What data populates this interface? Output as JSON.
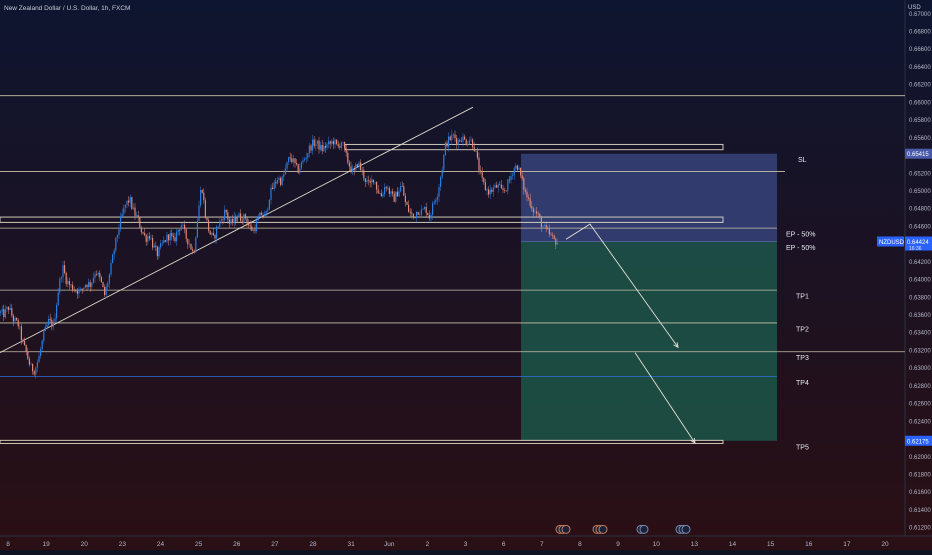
{
  "header": {
    "title": "New Zealand Dollar / U.S. Dollar, 1h, FXCM"
  },
  "price_scale": {
    "currency": "USD",
    "ticks": [
      "0.67000",
      "0.66800",
      "0.66600",
      "0.66400",
      "0.66200",
      "0.66000",
      "0.65800",
      "0.65600",
      "0.65400",
      "0.65200",
      "0.65000",
      "0.64800",
      "0.64600",
      "0.64400",
      "0.64200",
      "0.64000",
      "0.63800",
      "0.63600",
      "0.63400",
      "0.63200",
      "0.63000",
      "0.62800",
      "0.62600",
      "0.62400",
      "0.62200",
      "0.62000",
      "0.61800",
      "0.61600",
      "0.61400",
      "0.61200"
    ],
    "badges": [
      {
        "text": "0.65415",
        "value": 0.65415,
        "color": "#4a5aa8"
      },
      {
        "text": "0.64424",
        "value": 0.64424,
        "color": "#2962ff",
        "sub": "16:36"
      },
      {
        "text": "0.62175",
        "value": 0.62175,
        "color": "#2962ff"
      }
    ],
    "symbol_label": "NZDUSD"
  },
  "time_scale": {
    "labels": [
      "8",
      "19",
      "20",
      "23",
      "24",
      "25",
      "26",
      "27",
      "28",
      "31",
      "Jun",
      "2",
      "3",
      "6",
      "7",
      "8",
      "9",
      "10",
      "13",
      "14",
      "15",
      "16",
      "17",
      "20"
    ]
  },
  "chart_data": {
    "type": "candlestick",
    "symbol": "NZDUSD",
    "timeframe": "1h",
    "ylim": [
      0.611,
      0.6715
    ],
    "price_path": [
      [
        0,
        0.6362
      ],
      [
        3,
        0.636
      ],
      [
        8,
        0.6368
      ],
      [
        13,
        0.6354
      ],
      [
        18,
        0.6348
      ],
      [
        22,
        0.6328
      ],
      [
        26,
        0.6316
      ],
      [
        30,
        0.63
      ],
      [
        34,
        0.6297
      ],
      [
        38,
        0.631
      ],
      [
        43,
        0.6336
      ],
      [
        48,
        0.6352
      ],
      [
        53,
        0.6348
      ],
      [
        58,
        0.639
      ],
      [
        62,
        0.6414
      ],
      [
        66,
        0.6398
      ],
      [
        70,
        0.6392
      ],
      [
        75,
        0.6388
      ],
      [
        80,
        0.6386
      ],
      [
        85,
        0.6395
      ],
      [
        90,
        0.6394
      ],
      [
        95,
        0.641
      ],
      [
        100,
        0.6398
      ],
      [
        104,
        0.6382
      ],
      [
        109,
        0.6405
      ],
      [
        113,
        0.643
      ],
      [
        117,
        0.6452
      ],
      [
        121,
        0.647
      ],
      [
        125,
        0.6484
      ],
      [
        129,
        0.649
      ],
      [
        133,
        0.6476
      ],
      [
        137,
        0.6468
      ],
      [
        141,
        0.6455
      ],
      [
        145,
        0.6446
      ],
      [
        149,
        0.645
      ],
      [
        153,
        0.6436
      ],
      [
        157,
        0.6428
      ],
      [
        161,
        0.6438
      ],
      [
        165,
        0.6445
      ],
      [
        169,
        0.645
      ],
      [
        173,
        0.6442
      ],
      [
        177,
        0.6455
      ],
      [
        181,
        0.6462
      ],
      [
        185,
        0.6448
      ],
      [
        189,
        0.644
      ],
      [
        193,
        0.6428
      ],
      [
        197,
        0.647
      ],
      [
        201,
        0.6508
      ],
      [
        205,
        0.647
      ],
      [
        209,
        0.6452
      ],
      [
        213,
        0.6445
      ],
      [
        217,
        0.646
      ],
      [
        221,
        0.6468
      ],
      [
        225,
        0.6478
      ],
      [
        229,
        0.6462
      ],
      [
        233,
        0.6465
      ],
      [
        237,
        0.6472
      ],
      [
        241,
        0.6468
      ],
      [
        245,
        0.647
      ],
      [
        249,
        0.6458
      ],
      [
        253,
        0.6455
      ],
      [
        257,
        0.6466
      ],
      [
        261,
        0.6474
      ],
      [
        265,
        0.647
      ],
      [
        269,
        0.6495
      ],
      [
        273,
        0.6505
      ],
      [
        277,
        0.6514
      ],
      [
        281,
        0.651
      ],
      [
        285,
        0.6524
      ],
      [
        289,
        0.6538
      ],
      [
        293,
        0.6532
      ],
      [
        297,
        0.6522
      ],
      [
        301,
        0.653
      ],
      [
        305,
        0.6538
      ],
      [
        309,
        0.6548
      ],
      [
        313,
        0.6554
      ],
      [
        317,
        0.6552
      ],
      [
        321,
        0.6546
      ],
      [
        325,
        0.655
      ],
      [
        329,
        0.6552
      ],
      [
        333,
        0.6556
      ],
      [
        337,
        0.6548
      ],
      [
        341,
        0.6556
      ],
      [
        345,
        0.654
      ],
      [
        349,
        0.6528
      ],
      [
        353,
        0.6518
      ],
      [
        357,
        0.6532
      ],
      [
        361,
        0.6522
      ],
      [
        365,
        0.6512
      ],
      [
        369,
        0.6505
      ],
      [
        373,
        0.6515
      ],
      [
        377,
        0.65
      ],
      [
        381,
        0.6494
      ],
      [
        385,
        0.6507
      ],
      [
        389,
        0.6498
      ],
      [
        393,
        0.649
      ],
      [
        397,
        0.6498
      ],
      [
        401,
        0.6506
      ],
      [
        405,
        0.6485
      ],
      [
        409,
        0.6475
      ],
      [
        413,
        0.647
      ],
      [
        417,
        0.6478
      ],
      [
        421,
        0.6476
      ],
      [
        425,
        0.648
      ],
      [
        429,
        0.647
      ],
      [
        433,
        0.6486
      ],
      [
        437,
        0.6498
      ],
      [
        441,
        0.6522
      ],
      [
        445,
        0.6552
      ],
      [
        449,
        0.6558
      ],
      [
        453,
        0.6562
      ],
      [
        457,
        0.6555
      ],
      [
        461,
        0.656
      ],
      [
        465,
        0.6555
      ],
      [
        469,
        0.6558
      ],
      [
        473,
        0.6552
      ],
      [
        477,
        0.6532
      ],
      [
        481,
        0.6512
      ],
      [
        485,
        0.6502
      ],
      [
        489,
        0.6498
      ],
      [
        493,
        0.6502
      ],
      [
        497,
        0.6505
      ],
      [
        501,
        0.6499
      ],
      [
        505,
        0.6502
      ],
      [
        509,
        0.6512
      ],
      [
        513,
        0.6525
      ],
      [
        517,
        0.6528
      ],
      [
        521,
        0.6512
      ],
      [
        525,
        0.6496
      ],
      [
        529,
        0.6488
      ],
      [
        533,
        0.6478
      ],
      [
        537,
        0.6472
      ],
      [
        541,
        0.6462
      ],
      [
        545,
        0.6455
      ],
      [
        549,
        0.645
      ],
      [
        553,
        0.6444
      ],
      [
        557,
        0.6442
      ]
    ],
    "horizontal_levels": [
      {
        "name": "upper-level",
        "value": 0.6607,
        "x1": 0,
        "x2": 905,
        "color": "#c8c2a8"
      },
      {
        "name": "resistance-top",
        "value": 0.65215,
        "x1": 0,
        "x2": 785,
        "color": "#c8c2a8"
      },
      {
        "name": "resistance-zone",
        "value_top": 0.6552,
        "value_bottom": 0.6546,
        "x1": 345,
        "x2": 723,
        "color": "#e0dcc8"
      },
      {
        "name": "support-zone",
        "value_top": 0.647,
        "value_bottom": 0.6464,
        "x1": 0,
        "x2": 723,
        "color": "#e0dcc8"
      },
      {
        "name": "ep-line-1",
        "value": 0.64575,
        "x1": 0,
        "x2": 777,
        "color": "#c8c2a8"
      },
      {
        "name": "tp1-line",
        "value": 0.63875,
        "x1": 0,
        "x2": 777,
        "color": "#c8c2a8"
      },
      {
        "name": "tp2-line",
        "value": 0.63505,
        "x1": 0,
        "x2": 777,
        "color": "#c8c2a8"
      },
      {
        "name": "tp3-line",
        "value": 0.6318,
        "x1": 0,
        "x2": 905,
        "color": "#c8c2a8"
      },
      {
        "name": "tp4-line",
        "value": 0.629,
        "x1": 0,
        "x2": 777,
        "color": "#2f6fe0"
      },
      {
        "name": "tp5-zone",
        "value_top": 0.6218,
        "value_bottom": 0.62145,
        "x1": 0,
        "x2": 723,
        "color": "#e0dcc8"
      }
    ],
    "trendline": {
      "x1": 0,
      "price1": 0.6317,
      "x2": 473,
      "price2": 0.6594
    },
    "position": {
      "x1": 521,
      "x2": 777,
      "entry": 0.64424,
      "stop": 0.65415,
      "target": 0.62175,
      "risk_color": "#3b4a85",
      "reward_color": "#1b5a4c"
    },
    "projection_arrows": [
      {
        "points": [
          [
            566,
            0.6445
          ],
          [
            590,
            0.6462
          ],
          [
            678,
            0.6323
          ]
        ]
      },
      {
        "points": [
          [
            635,
            0.6317
          ],
          [
            695,
            0.6215
          ]
        ]
      }
    ],
    "annotations": [
      {
        "text": "SL",
        "value": 0.65415,
        "x": 798
      },
      {
        "text": "EP - 50%",
        "value": 0.64575,
        "x": 786
      },
      {
        "text": "EP - 50%",
        "value": 0.64424,
        "x": 786
      },
      {
        "text": "TP1",
        "value": 0.63875,
        "x": 796
      },
      {
        "text": "TP2",
        "value": 0.63505,
        "x": 796
      },
      {
        "text": "TP3",
        "value": 0.6318,
        "x": 796
      },
      {
        "text": "TP4",
        "value": 0.629,
        "x": 796
      },
      {
        "text": "TP5",
        "value": 0.62175,
        "x": 796
      }
    ],
    "event_markers": [
      {
        "x": 560,
        "value": 0.6122,
        "count": 3,
        "color": "#c87a5a"
      },
      {
        "x": 597,
        "value": 0.6122,
        "count": 3,
        "color": "#c87a5a"
      },
      {
        "x": 641,
        "value": 0.6122,
        "count": 2,
        "color": "#7a8ab0"
      },
      {
        "x": 680,
        "value": 0.6122,
        "count": 3,
        "color": "#7a8ab0"
      }
    ],
    "grid": false
  },
  "theme": {
    "background_top": "#0e1530",
    "background_bottom": "#2a0f14",
    "up_color": "#2a7de1",
    "down_color": "#e08a7a",
    "text_color": "#b4b8c8"
  }
}
